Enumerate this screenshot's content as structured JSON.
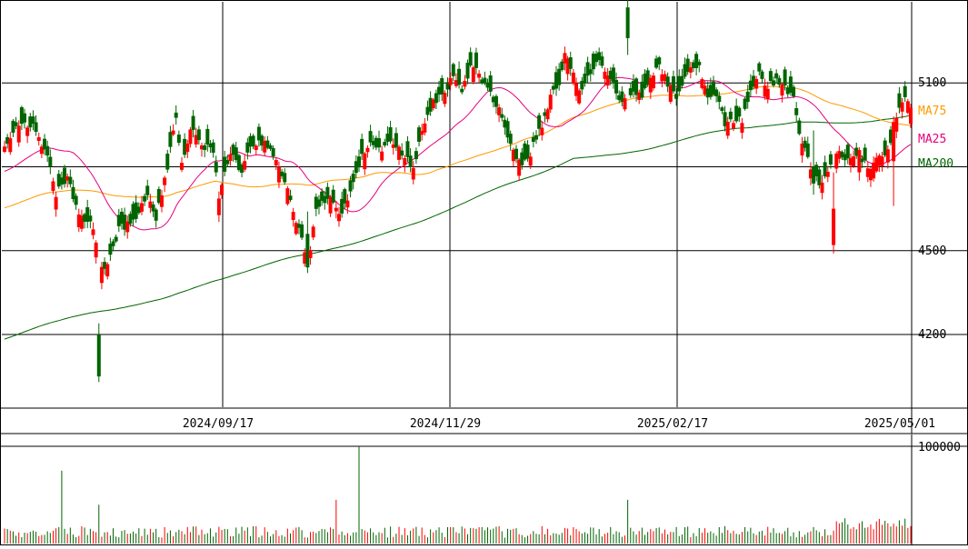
{
  "chart_data": {
    "type": "candlestick",
    "price_axis": {
      "ticks": [
        4200,
        4500,
        5100
      ],
      "tick_labels": [
        "4200",
        "4500",
        "5100"
      ],
      "grid_values": [
        4200,
        4500,
        4800,
        5100
      ],
      "ylim": [
        3940,
        5390
      ]
    },
    "date_axis": {
      "labels": [
        "2024/09/17",
        "2024/11/29",
        "2025/02/17",
        "2025/05/01"
      ]
    },
    "legend": [
      "MA75",
      "MA25",
      "MA200"
    ],
    "colors": {
      "up": "#ff0000",
      "down": "#006400",
      "ma25": "#e6007e",
      "ma75": "#ff9900",
      "ma200": "#006400",
      "grid": "#000000"
    },
    "volume_axis": {
      "tick_labels": [
        "100000"
      ],
      "max": 100000
    },
    "anchors": [
      [
        0,
        4880
      ],
      [
        5,
        4960
      ],
      [
        10,
        4940
      ],
      [
        15,
        4830
      ],
      [
        18,
        4700
      ],
      [
        22,
        4760
      ],
      [
        26,
        4620
      ],
      [
        30,
        4600
      ],
      [
        35,
        4420
      ],
      [
        40,
        4580
      ],
      [
        45,
        4600
      ],
      [
        48,
        4670
      ],
      [
        50,
        4690
      ],
      [
        53,
        4620
      ],
      [
        57,
        4800
      ],
      [
        60,
        4980
      ],
      [
        62,
        4800
      ],
      [
        65,
        4930
      ],
      [
        70,
        4870
      ],
      [
        73,
        4860
      ],
      [
        75,
        4700
      ],
      [
        79,
        4850
      ],
      [
        83,
        4780
      ],
      [
        86,
        4870
      ],
      [
        89,
        4890
      ],
      [
        92,
        4880
      ],
      [
        96,
        4800
      ],
      [
        100,
        4680
      ],
      [
        103,
        4580
      ],
      [
        106,
        4450
      ],
      [
        109,
        4640
      ],
      [
        113,
        4700
      ],
      [
        117,
        4620
      ],
      [
        121,
        4700
      ],
      [
        125,
        4850
      ],
      [
        129,
        4880
      ],
      [
        132,
        4860
      ],
      [
        135,
        4890
      ],
      [
        139,
        4850
      ],
      [
        143,
        4800
      ],
      [
        146,
        4920
      ],
      [
        150,
        5030
      ],
      [
        153,
        5060
      ],
      [
        157,
        5120
      ],
      [
        160,
        5080
      ],
      [
        164,
        5170
      ],
      [
        167,
        5100
      ],
      [
        170,
        5060
      ],
      [
        173,
        5000
      ],
      [
        176,
        4900
      ],
      [
        179,
        4830
      ],
      [
        181,
        4800
      ],
      [
        184,
        4850
      ],
      [
        188,
        4950
      ],
      [
        191,
        5050
      ],
      [
        194,
        5100
      ],
      [
        196,
        5200
      ],
      [
        199,
        5130
      ],
      [
        201,
        5060
      ],
      [
        204,
        5120
      ],
      [
        207,
        5180
      ],
      [
        210,
        5150
      ],
      [
        213,
        5100
      ],
      [
        216,
        5020
      ],
      [
        220,
        5080
      ],
      [
        223,
        5050
      ],
      [
        226,
        5120
      ],
      [
        229,
        5160
      ],
      [
        232,
        5100
      ],
      [
        235,
        5040
      ],
      [
        237,
        5100
      ],
      [
        240,
        5150
      ],
      [
        243,
        5170
      ],
      [
        246,
        5040
      ],
      [
        249,
        5060
      ],
      [
        252,
        4950
      ],
      [
        254,
        4970
      ],
      [
        258,
        4970
      ],
      [
        261,
        5080
      ],
      [
        264,
        5130
      ],
      [
        267,
        5090
      ],
      [
        270,
        5110
      ],
      [
        273,
        5080
      ],
      [
        276,
        5050
      ],
      [
        278,
        4920
      ],
      [
        280,
        4860
      ],
      [
        283,
        4760
      ],
      [
        286,
        4740
      ],
      [
        289,
        4800
      ],
      [
        292,
        4850
      ],
      [
        295,
        4830
      ],
      [
        299,
        4840
      ],
      [
        302,
        4800
      ],
      [
        305,
        4820
      ],
      [
        309,
        4850
      ],
      [
        312,
        4980
      ],
      [
        315,
        5040
      ],
      [
        317,
        5010
      ]
    ],
    "up_days": [
      0,
      2,
      5,
      8,
      12,
      13,
      17,
      18,
      22,
      26,
      27,
      31,
      32,
      34,
      36,
      43,
      48,
      51,
      55,
      56,
      59,
      62,
      64,
      65,
      67,
      69,
      75,
      76,
      79,
      84,
      88,
      91,
      95,
      96,
      99,
      101,
      102,
      105,
      107,
      108,
      114,
      116,
      117,
      120,
      126,
      127,
      132,
      136,
      138,
      140,
      143,
      146,
      147,
      150,
      154,
      156,
      158,
      161,
      164,
      166,
      173,
      178,
      180,
      184,
      188,
      190,
      191,
      196,
      197,
      199,
      200,
      201,
      210,
      211,
      217,
      222,
      226,
      227,
      230,
      231,
      233,
      240,
      244,
      245,
      253,
      255,
      258,
      263,
      266,
      267,
      272,
      279,
      282,
      283,
      286,
      288,
      291,
      292,
      296,
      297,
      299,
      302,
      303,
      304,
      305,
      306,
      307,
      309,
      311,
      312,
      314,
      316,
      317
    ],
    "spikes": [
      {
        "day": 33,
        "high": 4240,
        "low": 4030,
        "open": 4200,
        "close": 4050
      },
      {
        "day": 106,
        "high": 4640,
        "low": 4420,
        "open": 4560,
        "close": 4440
      },
      {
        "day": 218,
        "high": 5420,
        "low": 5200,
        "open": 5370,
        "close": 5260
      },
      {
        "day": 283,
        "high": 4930,
        "low": 4700,
        "open": 4800,
        "close": 4740
      },
      {
        "day": 290,
        "high": 4780,
        "low": 4490,
        "open": 4520,
        "close": 4650
      },
      {
        "day": 299,
        "high": 4870,
        "low": 4750,
        "open": 4780,
        "close": 4860
      },
      {
        "day": 311,
        "high": 4980,
        "low": 4660,
        "open": 4820,
        "close": 4960
      }
    ],
    "volume": {
      "spikes": [
        {
          "day": 20,
          "value": 75000
        },
        {
          "day": 33,
          "value": 40000
        },
        {
          "day": 116,
          "value": 45000
        },
        {
          "day": 124,
          "value": 100000
        },
        {
          "day": 218,
          "value": 45000
        }
      ]
    }
  }
}
